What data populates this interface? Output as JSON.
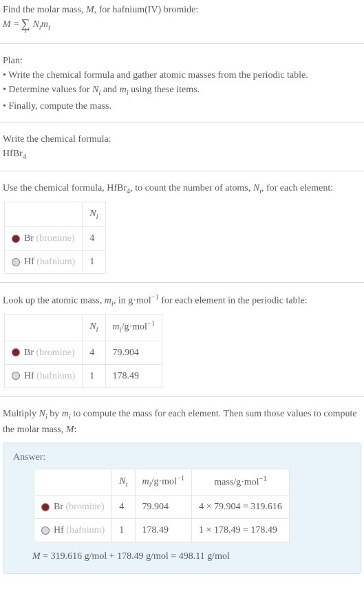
{
  "prompt": {
    "line1": "Find the molar mass, ",
    "Mvar": "M",
    "line1b": ", for hafnium(IV) bromide:",
    "eq_left": "M = ",
    "eq_sigma": "∑",
    "eq_sub": "i",
    "eq_right_N": "N",
    "eq_right_i1": "i",
    "eq_right_m": "m",
    "eq_right_i2": "i"
  },
  "plan": {
    "title": "Plan:",
    "items": [
      "• Write the chemical formula and gather atomic masses from the periodic table.",
      "• Determine values for ",
      "• Finally, compute the mass."
    ],
    "item2_tail": " using these items.",
    "N": "N",
    "i": "i",
    "and": " and ",
    "m": "m"
  },
  "step1": {
    "title": "Write the chemical formula:",
    "formula_base": "HfBr",
    "formula_sub": "4"
  },
  "step2": {
    "pre": "Use the chemical formula, ",
    "formula_base": "HfBr",
    "formula_sub": "4",
    "post1": ", to count the number of atoms, ",
    "N": "N",
    "i": "i",
    "post2": ", for each element:"
  },
  "table1": {
    "head_Ni": "N",
    "head_Ni_sub": "i",
    "rows": [
      {
        "swatch": "#8b1e1e",
        "elem": "Br",
        "paren": "(bromine)",
        "ni": "4"
      },
      {
        "swatch": "#d9d9d9",
        "elem": "Hf",
        "paren": "(hafnium)",
        "ni": "1"
      }
    ]
  },
  "step3": {
    "pre": "Look up the atomic mass, ",
    "m": "m",
    "i": "i",
    "mid": ", in g·mol",
    "exp": "−1",
    "post": " for each element in the periodic table:"
  },
  "table2": {
    "head_Ni": "N",
    "head_Ni_sub": "i",
    "head_mi": "m",
    "head_mi_sub": "i",
    "head_mi_unit": "/g·mol",
    "head_mi_exp": "−1",
    "rows": [
      {
        "swatch": "#8b1e1e",
        "elem": "Br",
        "paren": "(bromine)",
        "ni": "4",
        "mi": "79.904"
      },
      {
        "swatch": "#d9d9d9",
        "elem": "Hf",
        "paren": "(hafnium)",
        "ni": "1",
        "mi": "178.49"
      }
    ]
  },
  "step4": {
    "pre": "Multiply ",
    "N": "N",
    "i": "i",
    "by": " by ",
    "m": "m",
    "post1": " to compute the mass for each element. Then sum those values to compute the molar mass, ",
    "Mvar": "M",
    "post2": ":"
  },
  "answer": {
    "label": "Answer:",
    "table": {
      "head_Ni": "N",
      "head_Ni_sub": "i",
      "head_mi": "m",
      "head_mi_sub": "i",
      "head_mi_unit": "/g·mol",
      "head_mi_exp": "−1",
      "head_mass": "mass/g·mol",
      "head_mass_exp": "−1",
      "rows": [
        {
          "swatch": "#8b1e1e",
          "elem": "Br",
          "paren": "(bromine)",
          "ni": "4",
          "mi": "79.904",
          "mass": "4 × 79.904 = 319.616"
        },
        {
          "swatch": "#d9d9d9",
          "elem": "Hf",
          "paren": "(hafnium)",
          "ni": "1",
          "mi": "178.49",
          "mass": "1 × 178.49 = 178.49"
        }
      ]
    },
    "final_M": "M",
    "final_eq": " = 319.616 g/mol + 178.49 g/mol = 498.11 g/mol"
  },
  "colors": {
    "text": "#5a5a5a",
    "paren": "#bfbfbf",
    "border": "#e5e5e5",
    "answer_bg": "#e9f3fa",
    "answer_border": "#d3e5f2",
    "hr": "#d9d9d9"
  }
}
